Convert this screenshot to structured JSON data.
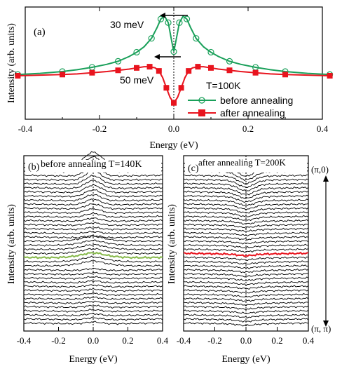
{
  "chart_data": [
    {
      "panel": "(a)",
      "type": "line",
      "xlabel": "Energy (eV)",
      "ylabel": "Intensity (arb. units)",
      "xlim": [
        -0.4,
        0.4
      ],
      "x_ticks": [
        "-0.4",
        "-0.2",
        "0.0",
        "0.2",
        "0.4"
      ],
      "legend_title": "T=100K",
      "legend_position": "lower-right",
      "annotations": [
        "30 meV",
        "50 meV"
      ],
      "series": [
        {
          "name": "before annealing",
          "color": "#1aa05a",
          "marker": "open-circle",
          "x": [
            -0.42,
            -0.36,
            -0.3,
            -0.26,
            -0.22,
            -0.18,
            -0.15,
            -0.12,
            -0.1,
            -0.08,
            -0.06,
            -0.045,
            -0.035,
            -0.025,
            -0.015,
            -0.005,
            0.0,
            0.005,
            0.015,
            0.025,
            0.035,
            0.045,
            0.06,
            0.08,
            0.1,
            0.12,
            0.15,
            0.18,
            0.22,
            0.26,
            0.3,
            0.36,
            0.42
          ],
          "values": [
            0.02,
            0.04,
            0.07,
            0.1,
            0.14,
            0.19,
            0.24,
            0.32,
            0.39,
            0.48,
            0.62,
            0.8,
            0.94,
            0.99,
            0.88,
            0.55,
            0.4,
            0.55,
            0.88,
            0.99,
            0.94,
            0.8,
            0.62,
            0.48,
            0.39,
            0.32,
            0.24,
            0.19,
            0.14,
            0.1,
            0.07,
            0.04,
            0.02
          ]
        },
        {
          "name": "after annealing",
          "color": "#e8141e",
          "marker": "filled-square",
          "x": [
            -0.42,
            -0.36,
            -0.3,
            -0.26,
            -0.22,
            -0.18,
            -0.15,
            -0.12,
            -0.1,
            -0.08,
            -0.065,
            -0.05,
            -0.04,
            -0.03,
            -0.02,
            -0.01,
            0.0,
            0.01,
            0.02,
            0.03,
            0.04,
            0.05,
            0.065,
            0.08,
            0.1,
            0.12,
            0.15,
            0.18,
            0.22,
            0.26,
            0.3,
            0.36,
            0.42
          ],
          "values": [
            0.0,
            0.01,
            0.02,
            0.03,
            0.05,
            0.07,
            0.09,
            0.11,
            0.13,
            0.15,
            0.15,
            0.13,
            0.08,
            -0.03,
            -0.2,
            -0.36,
            -0.45,
            -0.36,
            -0.2,
            -0.03,
            0.08,
            0.13,
            0.15,
            0.15,
            0.13,
            0.11,
            0.09,
            0.07,
            0.05,
            0.03,
            0.02,
            0.01,
            0.0
          ]
        }
      ]
    },
    {
      "panel": "(b)",
      "type": "line",
      "title": "before annealing T=140K",
      "xlabel": "Energy (eV)",
      "ylabel": "Intensity (arb. units)",
      "xlim": [
        -0.4,
        0.4
      ],
      "x_ticks": [
        "-0.4",
        "-0.2",
        "0.0",
        "0.2",
        "0.4"
      ],
      "n_curves": 40,
      "highlight_index": 23,
      "highlight_color": "#86b84a",
      "feature": "peak"
    },
    {
      "panel": "(c)",
      "type": "line",
      "title": "after annealing T=200K",
      "xlabel": "Energy (eV)",
      "ylabel": "Intensity (arb. units)",
      "xlim": [
        -0.4,
        0.4
      ],
      "x_ticks": [
        "-0.4",
        "-0.2",
        "0.0",
        "0.2",
        "0.4"
      ],
      "n_curves": 40,
      "highlight_index": 22,
      "highlight_color": "#e8141e",
      "feature": "dip",
      "momentum_labels": [
        "(π,0)",
        "(π, π)"
      ]
    }
  ]
}
